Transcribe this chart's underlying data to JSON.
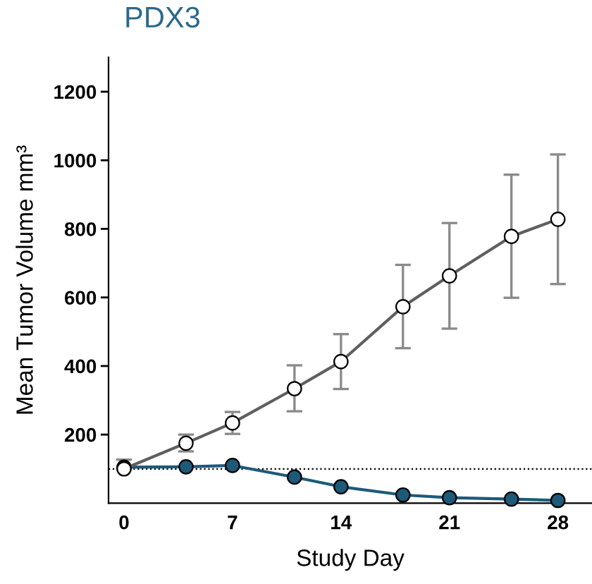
{
  "chart_data": {
    "type": "line",
    "title": "PDX3",
    "xlabel": "Study Day",
    "ylabel": "Mean Tumor Volume mm³",
    "xlim": [
      -1,
      30.2
    ],
    "xticks": [
      0,
      7,
      14,
      21,
      28
    ],
    "ylim": [
      0,
      1300
    ],
    "yticks": [
      200,
      400,
      600,
      800,
      1000,
      1200
    ],
    "marker": "circle",
    "grid": false,
    "legend": false,
    "series": [
      {
        "color": "#5f5f5f",
        "x": [
          0,
          4,
          7,
          11,
          14,
          18,
          21,
          25,
          28
        ],
        "values": [
          100,
          175,
          234,
          334,
          413,
          573,
          663,
          778,
          828
        ],
        "errors": [
          [
            100,
            127
          ],
          [
            151,
            200
          ],
          [
            202,
            266
          ],
          [
            268,
            402
          ],
          [
            333,
            493
          ],
          [
            452,
            695
          ],
          [
            509,
            817
          ],
          [
            599,
            958
          ],
          [
            639,
            1017
          ]
        ]
      },
      {
        "color": "#1d5a78",
        "x": [
          0,
          4,
          7,
          11,
          14,
          18,
          21,
          25,
          28
        ],
        "values": [
          105,
          106,
          110,
          76,
          48,
          24,
          16,
          12,
          8
        ]
      }
    ],
    "ref_lines": [
      {
        "axis": "y",
        "value": 100,
        "line_style": "dotted",
        "color": "#000000"
      }
    ]
  }
}
